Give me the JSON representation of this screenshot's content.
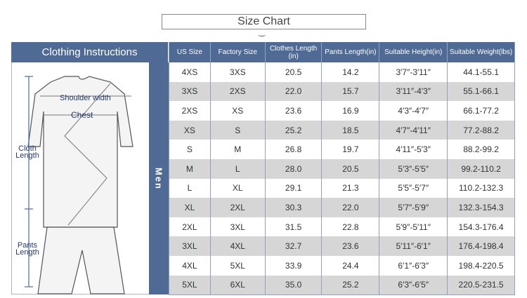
{
  "title": "Size Chart",
  "left_header": "Clothing Instructions",
  "group_label": "Men",
  "diagram_labels": {
    "shoulder": "Shoulder width",
    "chest": "Chest",
    "cloth_length": "Cloth Length",
    "pants_length": "Pants Length"
  },
  "columns": [
    "US Size",
    "Factory Size",
    "Clothes Length (in)",
    "Pants Length(in)",
    "Suitable Height(in)",
    "Suitable Weight(lbs)"
  ],
  "rows": [
    [
      "4XS",
      "3XS",
      "20.5",
      "14.2",
      "3′7″-3′11″",
      "44.1-55.1"
    ],
    [
      "3XS",
      "2XS",
      "22.0",
      "15.7",
      "3′11″-4′3″",
      "55.1-66.1"
    ],
    [
      "2XS",
      "XS",
      "23.6",
      "16.9",
      "4′3″-4′7″",
      "66.1-77.2"
    ],
    [
      "XS",
      "S",
      "25.2",
      "18.5",
      "4′7″-4′11″",
      "77.2-88.2"
    ],
    [
      "S",
      "M",
      "26.8",
      "19.7",
      "4′11″-5′3″",
      "88.2-99.2"
    ],
    [
      "M",
      "L",
      "28.0",
      "20.5",
      "5′3″-5′5″",
      "99.2-110.2"
    ],
    [
      "L",
      "XL",
      "29.1",
      "21.3",
      "5′5″-5′7″",
      "110.2-132.3"
    ],
    [
      "XL",
      "2XL",
      "30.3",
      "22.0",
      "5′7″-5′9″",
      "132.3-154.3"
    ],
    [
      "2XL",
      "3XL",
      "31.5",
      "22.8",
      "5′9″-5′11″",
      "154.3-176.4"
    ],
    [
      "3XL",
      "4XL",
      "32.7",
      "23.6",
      "5′11″-6′1″",
      "176.4-198.4"
    ],
    [
      "4XL",
      "5XL",
      "33.9",
      "24.4",
      "6′1″-6′3″",
      "198.4-220.5"
    ],
    [
      "5XL",
      "6XL",
      "35.0",
      "25.2",
      "6′3″-6′5″",
      "220.5-231.5"
    ]
  ]
}
